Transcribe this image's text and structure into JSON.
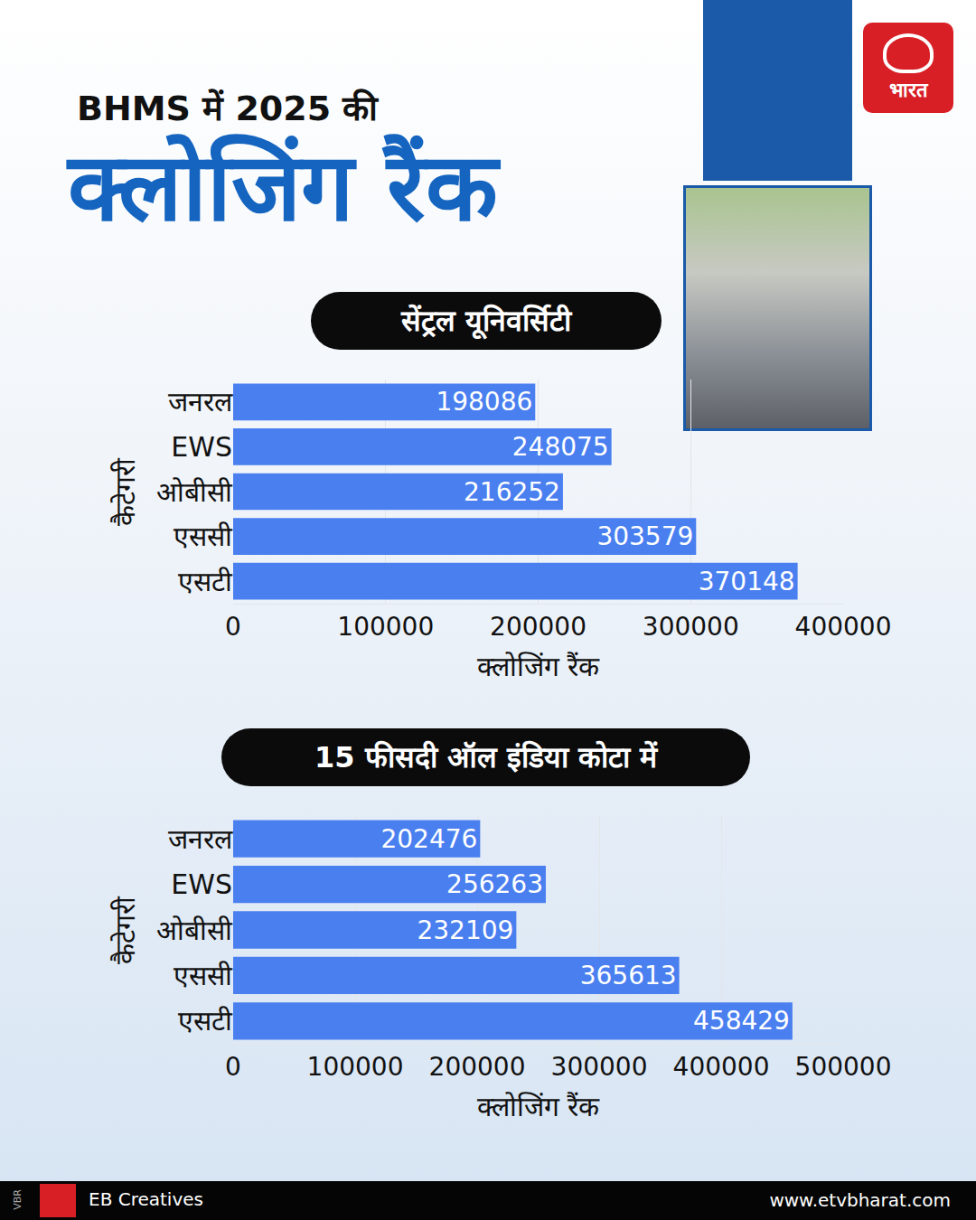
{
  "header": {
    "title_line1": "BHMS में 2025 की",
    "title_line2": "क्लोजिंग रैंक",
    "logo_text": "भारत"
  },
  "footer": {
    "tag": "VBR",
    "credit": "EB Creatives",
    "website": "www.etvbharat.com"
  },
  "chart_data": [
    {
      "type": "bar",
      "title": "सेंट्रल यूनिवर्सिटी",
      "orientation": "horizontal",
      "categories": [
        "जनरल",
        "EWS",
        "ओबीसी",
        "एससी",
        "एसटी"
      ],
      "values": [
        198086,
        248075,
        216252,
        303579,
        370148
      ],
      "color": "#4a7ff0",
      "xlabel": "क्लोजिंग रैंक",
      "ylabel": "कैटेगरी",
      "xlim": [
        0,
        400000
      ],
      "xticks": [
        0,
        100000,
        200000,
        300000,
        400000
      ],
      "grid": true,
      "data_labels": true
    },
    {
      "type": "bar",
      "title": "15 फीसदी ऑल इंडिया कोटा में",
      "orientation": "horizontal",
      "categories": [
        "जनरल",
        "EWS",
        "ओबीसी",
        "एससी",
        "एसटी"
      ],
      "values": [
        202476,
        256263,
        232109,
        365613,
        458429
      ],
      "color": "#4a7ff0",
      "xlabel": "क्लोजिंग रैंक",
      "ylabel": "कैटेगरी",
      "xlim": [
        0,
        500000
      ],
      "xticks": [
        0,
        100000,
        200000,
        300000,
        400000,
        500000
      ],
      "grid": true,
      "data_labels": true
    }
  ]
}
